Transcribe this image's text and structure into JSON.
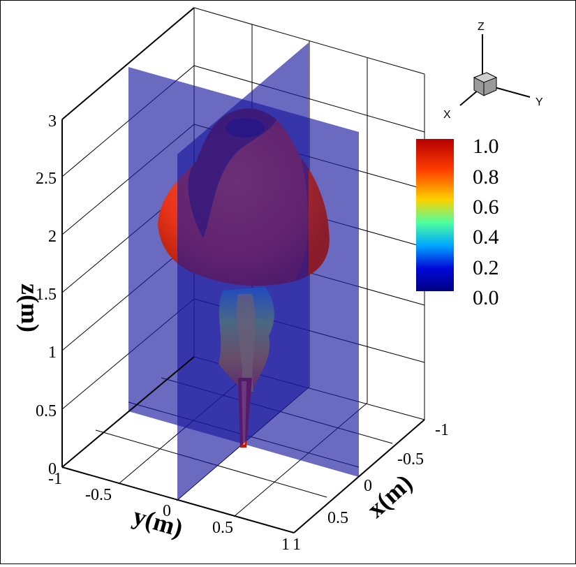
{
  "figure": {
    "z_axis": {
      "title": "z(m)",
      "ticks": [
        "0",
        "0.5",
        "1",
        "1.5",
        "2",
        "2.5",
        "3"
      ]
    },
    "y_axis": {
      "title": "y(m)",
      "ticks": [
        "-1",
        "-0.5",
        "0",
        "0.5",
        "1"
      ]
    },
    "x_axis": {
      "title": "x(m)",
      "ticks": [
        "-1",
        "-0.5",
        "0",
        "0.5",
        "1"
      ]
    },
    "triad": {
      "x": "X",
      "y": "Y",
      "z": "Z"
    },
    "colorbar": {
      "ticks": [
        "1.0",
        "0.8",
        "0.6",
        "0.4",
        "0.2",
        "0.0"
      ],
      "colors": [
        "#b40000",
        "#ff3b00",
        "#ffd200",
        "#4dff9f",
        "#00a6ff",
        "#0008d8",
        "#00007e"
      ]
    },
    "colors": {
      "plane": "#1a1a9e",
      "isosurface": "#e8341a",
      "isosurface_shadow": "#6a1a40"
    }
  }
}
